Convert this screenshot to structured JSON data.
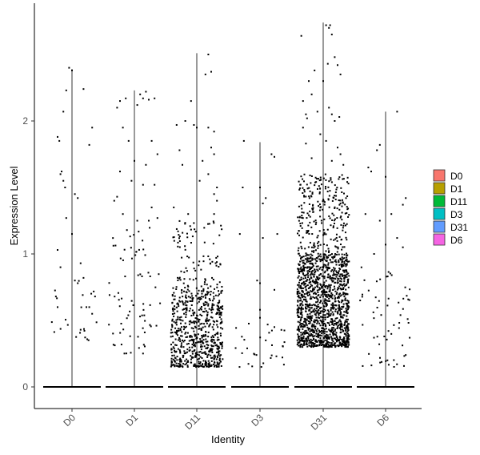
{
  "chart_data": {
    "type": "scatter",
    "subtype": "violin-jitter",
    "title": "",
    "xlabel": "Identity",
    "ylabel": "Expression Level",
    "categories": [
      "D0",
      "D1",
      "D11",
      "D3",
      "D31",
      "D6"
    ],
    "ylim": [
      -0.15,
      2.8
    ],
    "yticks": [
      0,
      1,
      2
    ],
    "grid": false,
    "legend": {
      "placement": "right",
      "entries": [
        {
          "label": "D0",
          "color": "#F8766D"
        },
        {
          "label": "D1",
          "color": "#B79F00"
        },
        {
          "label": "D11",
          "color": "#00BA38"
        },
        {
          "label": "D3",
          "color": "#00BFC4"
        },
        {
          "label": "D31",
          "color": "#619CFF"
        },
        {
          "label": "D6",
          "color": "#F564E3"
        }
      ]
    },
    "series": [
      {
        "category": "D0",
        "max": 2.39,
        "zero_dense": true,
        "cluster_low": 0.3,
        "cluster_high": 0.8,
        "cluster_count": 20,
        "sparse_points": [
          [
            -0.25,
            1.88
          ],
          [
            -0.22,
            1.85
          ],
          [
            -0.2,
            1.6
          ],
          [
            -0.18,
            1.62
          ],
          [
            -0.15,
            1.55
          ],
          [
            -0.12,
            1.5
          ],
          [
            -0.1,
            1.27
          ],
          [
            -0.25,
            1.03
          ],
          [
            -0.2,
            0.9
          ],
          [
            0.05,
            1.45
          ],
          [
            0.1,
            1.42
          ],
          [
            -0.05,
            2.4
          ],
          [
            0.0,
            2.38
          ],
          [
            -0.1,
            2.23
          ],
          [
            0.2,
            2.24
          ],
          [
            0.35,
            1.95
          ],
          [
            0.3,
            1.82
          ],
          [
            -0.15,
            2.07
          ],
          [
            0.15,
            0.93
          ],
          [
            0.05,
            0.8
          ],
          [
            0.1,
            0.78
          ],
          [
            0.2,
            0.82
          ],
          [
            0.3,
            0.6
          ],
          [
            0.35,
            0.55
          ],
          [
            0.4,
            0.68
          ],
          [
            0.0,
            1.15
          ],
          [
            -0.28,
            0.68
          ],
          [
            -0.25,
            0.6
          ],
          [
            0.25,
            0.6
          ],
          [
            0.15,
            0.43
          ]
        ]
      },
      {
        "category": "D1",
        "max": 2.23,
        "zero_dense": true,
        "cluster_low": 0.25,
        "cluster_high": 1.2,
        "cluster_count": 70,
        "sparse_points": [
          [
            -0.3,
            2.1
          ],
          [
            -0.25,
            2.15
          ],
          [
            -0.2,
            1.95
          ],
          [
            -0.15,
            2.17
          ],
          [
            0.05,
            2.12
          ],
          [
            0.1,
            2.2
          ],
          [
            0.15,
            2.17
          ],
          [
            0.2,
            2.22
          ],
          [
            0.25,
            2.16
          ],
          [
            0.35,
            2.17
          ],
          [
            0.3,
            1.85
          ],
          [
            -0.1,
            1.85
          ],
          [
            0.4,
            1.75
          ],
          [
            -0.25,
            1.62
          ],
          [
            0.0,
            1.7
          ],
          [
            0.2,
            1.67
          ],
          [
            -0.3,
            1.43
          ],
          [
            -0.05,
            1.55
          ],
          [
            0.15,
            1.52
          ],
          [
            0.35,
            1.52
          ],
          [
            0.3,
            1.35
          ],
          [
            -0.2,
            1.3
          ],
          [
            0.25,
            1.25
          ],
          [
            0.05,
            1.25
          ],
          [
            -0.35,
            1.4
          ],
          [
            0.4,
            1.27
          ]
        ]
      },
      {
        "category": "D11",
        "max": 2.51,
        "zero_dense": true,
        "cluster_low": 0.15,
        "cluster_high": 0.75,
        "cluster_count": 650,
        "mid_low": 0.75,
        "mid_high": 1.25,
        "mid_count": 90,
        "sparse_points": [
          [
            -0.35,
            1.97
          ],
          [
            -0.2,
            2.0
          ],
          [
            -0.1,
            2.15
          ],
          [
            -0.05,
            1.97
          ],
          [
            0.0,
            1.95
          ],
          [
            0.15,
            2.35
          ],
          [
            0.2,
            2.5
          ],
          [
            0.25,
            2.37
          ],
          [
            0.25,
            1.8
          ],
          [
            0.3,
            1.75
          ],
          [
            0.35,
            1.5
          ],
          [
            0.3,
            1.45
          ],
          [
            0.35,
            1.4
          ],
          [
            0.2,
            1.6
          ],
          [
            0.05,
            1.55
          ],
          [
            -0.3,
            1.78
          ],
          [
            -0.25,
            1.67
          ],
          [
            0.1,
            1.7
          ],
          [
            0.3,
            1.92
          ],
          [
            -0.15,
            1.3
          ],
          [
            0.3,
            1.3
          ],
          [
            0.2,
            1.95
          ],
          [
            -0.4,
            1.35
          ]
        ]
      },
      {
        "category": "D3",
        "max": 1.84,
        "zero_dense": true,
        "cluster_low": 0.15,
        "cluster_high": 0.5,
        "cluster_count": 30,
        "sparse_points": [
          [
            -0.28,
            1.85
          ],
          [
            -0.3,
            1.5
          ],
          [
            0.05,
            1.38
          ],
          [
            0.2,
            1.75
          ],
          [
            0.25,
            1.73
          ],
          [
            0.0,
            1.5
          ],
          [
            0.1,
            1.42
          ],
          [
            -0.35,
            1.15
          ],
          [
            0.05,
            1.12
          ],
          [
            -0.05,
            0.8
          ],
          [
            0.0,
            0.78
          ],
          [
            0.25,
            0.73
          ],
          [
            0.0,
            0.58
          ],
          [
            0.0,
            0.52
          ],
          [
            0.25,
            0.45
          ],
          [
            0.1,
            0.35
          ],
          [
            0.3,
            1.15
          ]
        ]
      },
      {
        "category": "D31",
        "max": 2.74,
        "zero_dense": true,
        "cluster_low": 0.3,
        "cluster_high": 1.0,
        "cluster_count": 1300,
        "mid_low": 1.0,
        "mid_high": 1.6,
        "mid_count": 260,
        "sparse_points": [
          [
            -0.38,
            2.64
          ],
          [
            -0.25,
            2.3
          ],
          [
            -0.35,
            2.15
          ],
          [
            -0.3,
            2.05
          ],
          [
            -0.28,
            2.02
          ],
          [
            -0.2,
            2.2
          ],
          [
            -0.15,
            2.38
          ],
          [
            0.0,
            2.3
          ],
          [
            0.05,
            2.72
          ],
          [
            0.1,
            2.7
          ],
          [
            0.15,
            2.65
          ],
          [
            0.12,
            2.72
          ],
          [
            0.2,
            2.48
          ],
          [
            0.25,
            2.42
          ],
          [
            0.3,
            2.35
          ],
          [
            0.1,
            2.1
          ],
          [
            0.15,
            2.05
          ],
          [
            0.2,
            2.0
          ],
          [
            0.28,
            2.03
          ],
          [
            -0.1,
            2.07
          ],
          [
            -0.05,
            1.9
          ],
          [
            0.05,
            1.85
          ],
          [
            -0.3,
            1.83
          ],
          [
            0.25,
            1.8
          ],
          [
            0.3,
            1.75
          ],
          [
            -0.2,
            1.72
          ],
          [
            0.15,
            1.7
          ],
          [
            -0.35,
            1.95
          ],
          [
            0.35,
            1.67
          ],
          [
            0.08,
            2.43
          ]
        ]
      },
      {
        "category": "D6",
        "max": 2.07,
        "zero_dense": true,
        "cluster_low": 0.15,
        "cluster_high": 0.9,
        "cluster_count": 60,
        "sparse_points": [
          [
            -0.15,
            1.78
          ],
          [
            -0.1,
            1.82
          ],
          [
            -0.3,
            1.65
          ],
          [
            -0.25,
            1.62
          ],
          [
            0.2,
            2.07
          ],
          [
            0.0,
            1.58
          ],
          [
            0.35,
            1.42
          ],
          [
            0.3,
            1.37
          ],
          [
            -0.35,
            1.3
          ],
          [
            -0.1,
            1.25
          ],
          [
            0.2,
            1.12
          ],
          [
            0.3,
            1.05
          ],
          [
            0.0,
            1.07
          ],
          [
            -0.2,
            1.0
          ],
          [
            0.1,
            1.3
          ]
        ]
      }
    ]
  }
}
